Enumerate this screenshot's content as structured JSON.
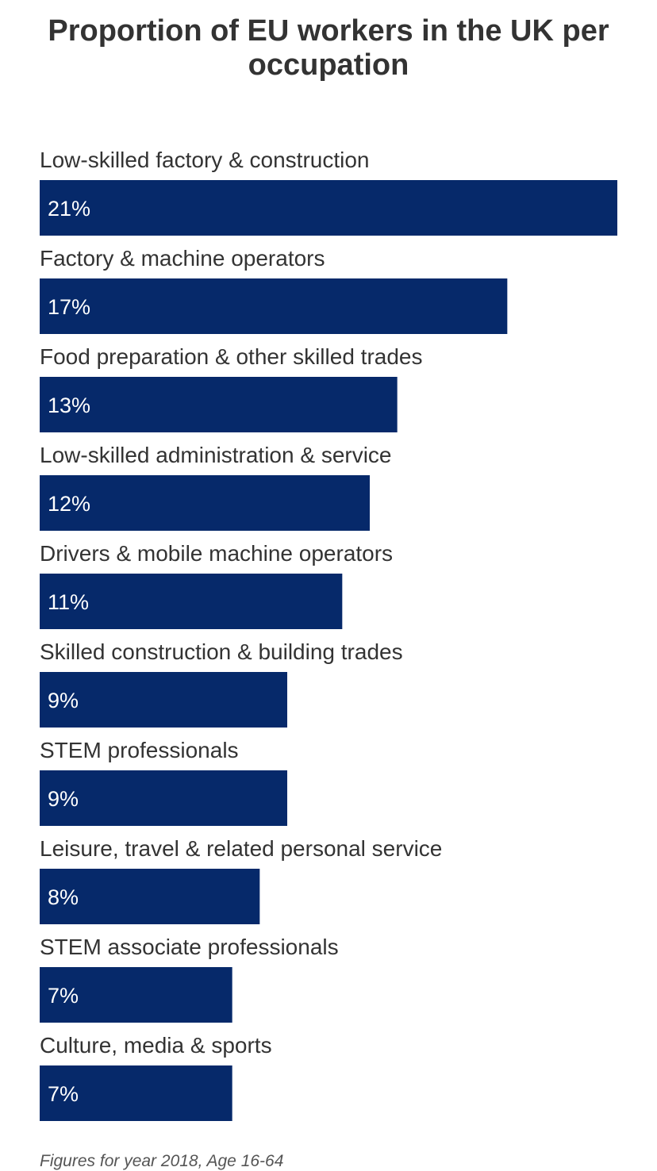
{
  "chart_data": {
    "type": "bar",
    "orientation": "horizontal",
    "title": "Proportion of EU workers in the UK per occupation",
    "categories": [
      "Low-skilled factory & construction",
      "Factory & machine operators",
      "Food preparation & other skilled trades",
      "Low-skilled administration & service",
      "Drivers & mobile machine operators",
      "Skilled construction & building trades",
      "STEM professionals",
      "Leisure, travel & related personal service",
      "STEM associate professionals",
      "Culture, media & sports"
    ],
    "values": [
      21,
      17,
      13,
      12,
      11,
      9,
      9,
      8,
      7,
      7
    ],
    "value_labels": [
      "21%",
      "17%",
      "13%",
      "12%",
      "11%",
      "9%",
      "9%",
      "8%",
      "7%",
      "7%"
    ],
    "unit": "%",
    "bar_color": "#06296a",
    "grid": false,
    "legend": "none",
    "footnote": "Figures for year 2018, Age 16-64"
  }
}
